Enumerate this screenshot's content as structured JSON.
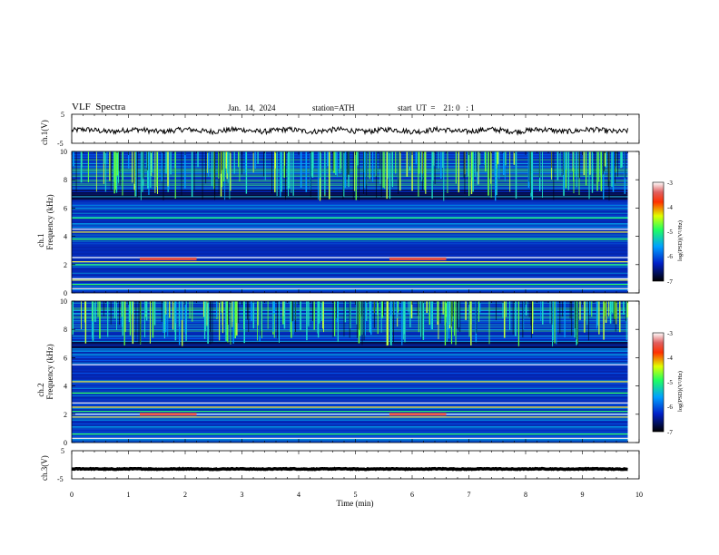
{
  "header": {
    "title": "VLF  Spectra",
    "date": "Jan.  14,  2024",
    "station": "station=ATH",
    "start": "start  UT  =    21: 0   : 1"
  },
  "colors": {
    "spectrogram_background": "#0a1e96",
    "trace": "#000000"
  },
  "chart_data": [
    {
      "type": "line",
      "panel": "ch1-voltage",
      "ylabel": "ch.1(V)",
      "ylim": [
        -5,
        5
      ],
      "yticks": [
        "5",
        "-5"
      ],
      "xlim": [
        0,
        10
      ],
      "series": [
        {
          "values_approx": "noisy trace around -0.3 V spanning 0 to 9.8 min"
        }
      ]
    },
    {
      "type": "heatmap",
      "panel": "ch1-spectrogram",
      "ylabel": "ch.1\nFrequency  (kHz)",
      "ylabel_lines": [
        "ch.1",
        "Frequency  (kHz)"
      ],
      "ylim": [
        0,
        10
      ],
      "yticks": [
        "0",
        "2",
        "4",
        "6",
        "8",
        "10"
      ],
      "xlim": [
        0,
        10
      ],
      "data_extent_min": 9.8,
      "colorbar": {
        "label": "log(PSD)(V²/Hz)",
        "ticks": [
          "-3",
          "-4",
          "-5",
          "-6",
          "-7"
        ],
        "range": [
          -7,
          -3
        ]
      },
      "features": {
        "strong_lines_khz": [
          0.3,
          0.6,
          0.9,
          1.0,
          2.0,
          2.2,
          2.5,
          3.8,
          4.3,
          4.5,
          5.3
        ],
        "enhanced_band_khz": [
          2.3,
          2.5
        ],
        "enhanced_band_minutes": [
          [
            1.2,
            2.2
          ],
          [
            5.6,
            6.6
          ]
        ],
        "sferic_band_khz": [
          6.5,
          10.0
        ]
      }
    },
    {
      "type": "heatmap",
      "panel": "ch2-spectrogram",
      "ylabel": "ch.2\nFrequency  (kHz)",
      "ylabel_lines": [
        "ch.2",
        "Frequency  (kHz)"
      ],
      "ylim": [
        0,
        10
      ],
      "yticks": [
        "0",
        "2",
        "4",
        "6",
        "8",
        "10"
      ],
      "xlim": [
        0,
        10
      ],
      "data_extent_min": 9.8,
      "colorbar": {
        "label": "log(PSD)(V²/Hz)",
        "ticks": [
          "-3",
          "-4",
          "-5",
          "-6",
          "-7"
        ],
        "range": [
          -7,
          -3
        ]
      },
      "features": {
        "strong_lines_khz": [
          0.3,
          0.6,
          1.8,
          2.0,
          2.2,
          2.5,
          2.8,
          3.5,
          4.3,
          5.5
        ],
        "enhanced_band_khz": [
          1.9,
          2.1
        ],
        "enhanced_band_minutes": [
          [
            1.2,
            2.2
          ],
          [
            5.6,
            6.6
          ]
        ],
        "sferic_band_khz": [
          6.8,
          10.0
        ]
      }
    },
    {
      "type": "line",
      "panel": "ch3-voltage",
      "ylabel": "ch.3(V)",
      "ylim": [
        -5,
        5
      ],
      "yticks": [
        "5",
        "-5"
      ],
      "xlim": [
        0,
        10
      ],
      "series": [
        {
          "values_approx": "flat trace at about -1 V spanning 0 to 9.8 min"
        }
      ]
    }
  ],
  "xaxis": {
    "label": "Time  (min)",
    "ticks": [
      "0",
      "1",
      "2",
      "3",
      "4",
      "5",
      "6",
      "7",
      "8",
      "9",
      "10"
    ]
  }
}
